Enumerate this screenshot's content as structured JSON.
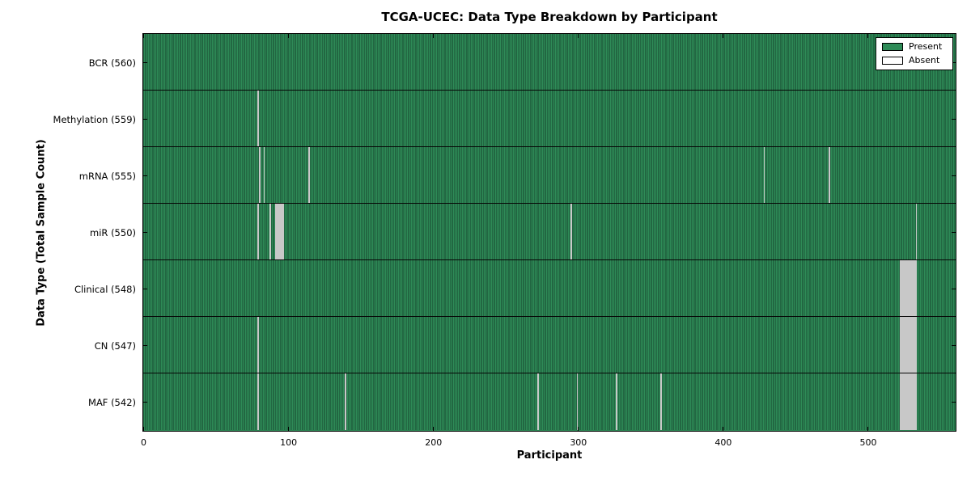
{
  "chart_data": {
    "type": "heatmap",
    "title": "TCGA-UCEC: Data Type Breakdown by Participant",
    "xlabel": "Participant",
    "ylabel": "Data Type (Total Sample Count)",
    "x_range": [
      0,
      560
    ],
    "x_ticks": [
      0,
      100,
      200,
      300,
      400,
      500
    ],
    "n_participants": 560,
    "grid": false,
    "legend": {
      "position": "upper right",
      "entries": [
        {
          "label": "Present",
          "color": "#2E8B57"
        },
        {
          "label": "Absent",
          "color": "#FFFFFF"
        }
      ]
    },
    "colors": {
      "present_fill": "#2E8B57",
      "present_edge": "#16432c",
      "absent_fill": "#F7F7F7",
      "absent_edge": "#9A9A9A",
      "frame": "#000000",
      "background": "#FFFFFF"
    },
    "rows": [
      {
        "label": "BCR (560)",
        "data_type": "BCR",
        "present_count": 560,
        "absent_participants": []
      },
      {
        "label": "Methylation (559)",
        "data_type": "Methylation",
        "present_count": 559,
        "absent_participants": [
          79
        ]
      },
      {
        "label": "mRNA (555)",
        "data_type": "mRNA",
        "present_count": 555,
        "absent_participants": [
          80,
          83,
          114,
          428,
          473
        ]
      },
      {
        "label": "miR (550)",
        "data_type": "miR",
        "present_count": 550,
        "absent_participants": [
          79,
          87,
          91,
          92,
          93,
          94,
          95,
          96,
          295,
          533
        ]
      },
      {
        "label": "Clinical (548)",
        "data_type": "Clinical",
        "present_count": 548,
        "absent_participants": [
          522,
          523,
          524,
          525,
          526,
          527,
          528,
          529,
          530,
          531,
          532,
          533
        ]
      },
      {
        "label": "CN (547)",
        "data_type": "CN",
        "present_count": 547,
        "absent_participants": [
          79,
          522,
          523,
          524,
          525,
          526,
          527,
          528,
          529,
          530,
          531,
          532,
          533
        ]
      },
      {
        "label": "MAF (542)",
        "data_type": "MAF",
        "present_count": 542,
        "absent_participants": [
          79,
          139,
          272,
          299,
          326,
          357,
          522,
          523,
          524,
          525,
          526,
          527,
          528,
          529,
          530,
          531,
          532,
          533
        ]
      }
    ]
  }
}
